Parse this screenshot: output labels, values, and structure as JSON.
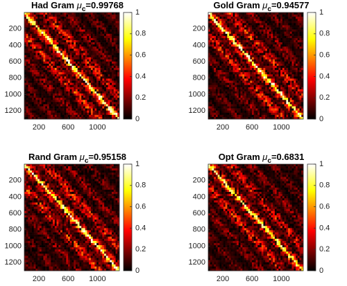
{
  "chart_data": [
    {
      "type": "heatmap",
      "title": [
        "Had Gram ",
        "μ",
        "c",
        "=0.99768"
      ],
      "xlim": [
        0,
        1300
      ],
      "ylim": [
        0,
        1300
      ],
      "xticks": [
        200,
        600,
        1000
      ],
      "yticks": [
        200,
        400,
        600,
        800,
        1000,
        1200
      ],
      "colorbar": {
        "lim": [
          0,
          1
        ],
        "ticks": [
          0,
          0.2,
          0.4,
          0.6,
          0.8,
          1
        ]
      }
    },
    {
      "type": "heatmap",
      "title": [
        "Gold Gram ",
        "μ",
        "c",
        "=0.94577"
      ],
      "xlim": [
        0,
        1300
      ],
      "ylim": [
        0,
        1300
      ],
      "xticks": [
        200,
        600,
        1000
      ],
      "yticks": [
        200,
        400,
        600,
        800,
        1000,
        1200
      ],
      "colorbar": {
        "lim": [
          0,
          1
        ],
        "ticks": [
          0,
          0.2,
          0.4,
          0.6,
          0.8,
          1
        ]
      }
    },
    {
      "type": "heatmap",
      "title": [
        "Rand Gram ",
        "μ",
        "c",
        "=0.95158"
      ],
      "xlim": [
        0,
        1300
      ],
      "ylim": [
        0,
        1300
      ],
      "xticks": [
        200,
        600,
        1000
      ],
      "yticks": [
        200,
        400,
        600,
        800,
        1000,
        1200
      ],
      "colorbar": {
        "lim": [
          0,
          1
        ],
        "ticks": [
          0,
          0.2,
          0.4,
          0.6,
          0.8,
          1
        ]
      }
    },
    {
      "type": "heatmap",
      "title": [
        "Opt Gram ",
        "μ",
        "c",
        "=0.6831"
      ],
      "xlim": [
        0,
        1300
      ],
      "ylim": [
        0,
        1300
      ],
      "xticks": [
        200,
        600,
        1000
      ],
      "yticks": [
        200,
        400,
        600,
        800,
        1000,
        1200
      ],
      "colorbar": {
        "lim": [
          0,
          1
        ],
        "ticks": [
          0,
          0.2,
          0.4,
          0.6,
          0.8,
          1
        ]
      }
    }
  ]
}
